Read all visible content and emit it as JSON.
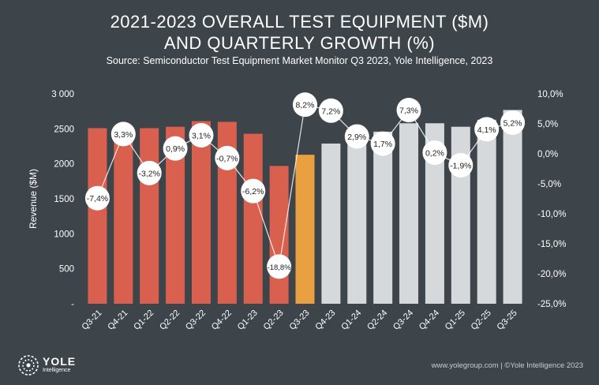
{
  "header": {
    "title_line1": "2021-2023 OVERALL TEST EQUIPMENT ($M)",
    "title_line2": "AND QUARTERLY GROWTH (%)",
    "source": "Source: Semiconductor Test Equipment Market Monitor Q3 2023, Yole Intelligence, 2023"
  },
  "footer": {
    "logo_name": "YOLE",
    "logo_sub": "Intelligence",
    "credit": "www.yolegroup.com | ©Yole Intelligence 2023"
  },
  "colors": {
    "background": "#3d444a",
    "actual": "#d9604f",
    "current": "#e9a040",
    "forecast": "#d5d9dc",
    "bubble": "#ffffff",
    "line": "#ffffff"
  },
  "chart_data": {
    "type": "bar",
    "categories": [
      "Q3-21",
      "Q4-21",
      "Q1-22",
      "Q2-22",
      "Q3-22",
      "Q4-22",
      "Q1-23",
      "Q2-23",
      "Q3-23",
      "Q4-23",
      "Q1-24",
      "Q2-24",
      "Q3-24",
      "Q4-24",
      "Q1-25",
      "Q2-25",
      "Q3-25"
    ],
    "series": [
      {
        "type": "bar",
        "values": [
          2510,
          2440,
          2510,
          2530,
          2610,
          2600,
          2430,
          1970,
          2130,
          2290,
          2420,
          2460,
          2580,
          2580,
          2530,
          2630,
          2770
        ],
        "bar_colors": [
          "actual",
          "actual",
          "actual",
          "actual",
          "actual",
          "actual",
          "actual",
          "actual",
          "current",
          "forecast",
          "forecast",
          "forecast",
          "forecast",
          "forecast",
          "forecast",
          "forecast",
          "forecast"
        ],
        "axis": "left"
      },
      {
        "type": "line",
        "values": [
          -7.4,
          3.3,
          -3.2,
          0.9,
          3.1,
          -0.7,
          -6.2,
          -18.8,
          8.2,
          7.2,
          2.9,
          1.7,
          7.3,
          0.2,
          -1.9,
          4.1,
          5.2
        ],
        "labels": [
          "-7,4%",
          "3,3%",
          "-3,2%",
          "0,9%",
          "3,1%",
          "-0,7%",
          "-6,2%",
          "-18,8%",
          "8,2%",
          "7,2%",
          "2,9%",
          "1,7%",
          "7,3%",
          "0,2%",
          "-1,9%",
          "4,1%",
          "5,2%"
        ],
        "axis": "right"
      }
    ],
    "ylabel": "Revenue ($M)",
    "ylim": [
      0,
      3000
    ],
    "yticks": [
      "-",
      "500",
      "1000",
      "1500",
      "2000",
      "2500",
      "3 000"
    ],
    "y2lim": [
      -25,
      10
    ],
    "y2ticks": [
      "-25,0%",
      "-20,0%",
      "-15,0%",
      "-10,0%",
      "-5,0%",
      "0,0%",
      "5,0%",
      "10,0%"
    ],
    "grid": false,
    "legend": "none"
  }
}
